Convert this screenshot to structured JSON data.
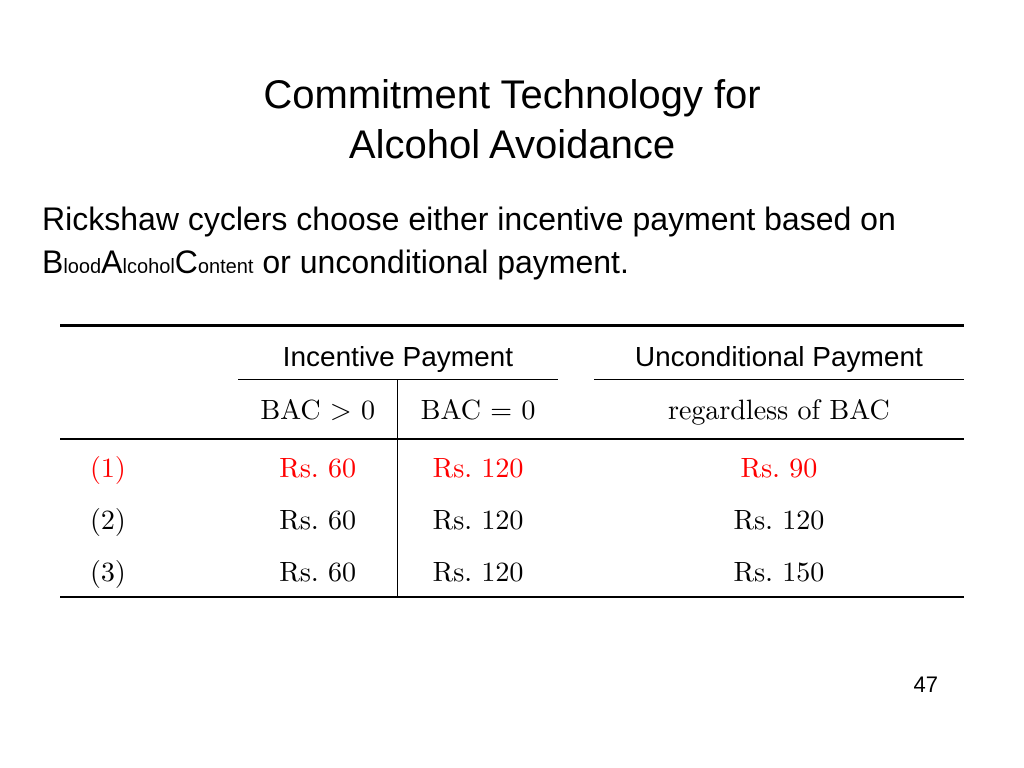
{
  "title_line1": "Commitment Technology for",
  "title_line2": "Alcohol Avoidance",
  "body_prefix": "Rickshaw cyclers choose either incentive payment based on ",
  "bac_B": "B",
  "bac_lood": "lood",
  "bac_A": "A",
  "bac_lcohol": "lcohol",
  "bac_C": "C",
  "bac_ontent": "ontent",
  "body_suffix": " or unconditional payment.",
  "table": {
    "group_headers": {
      "incentive": "Incentive Payment",
      "unconditional": "Unconditional Payment"
    },
    "sub_headers": {
      "bac_gt0": "BAC > 0",
      "bac_eq0": "BAC = 0",
      "regardless": "regardless of BAC"
    },
    "rows": [
      {
        "idx": "(1)",
        "bac_gt0": "Rs. 60",
        "bac_eq0": "Rs. 120",
        "uncond": "Rs. 90",
        "highlight": true
      },
      {
        "idx": "(2)",
        "bac_gt0": "Rs. 60",
        "bac_eq0": "Rs. 120",
        "uncond": "Rs. 120",
        "highlight": false
      },
      {
        "idx": "(3)",
        "bac_gt0": "Rs. 60",
        "bac_eq0": "Rs. 120",
        "uncond": "Rs. 150",
        "highlight": false
      }
    ],
    "colors": {
      "highlight": "#ff0000",
      "normal": "#000000",
      "rule": "#000000",
      "background": "#ffffff"
    },
    "fontsizes": {
      "title": 40,
      "body": 32,
      "header": 28,
      "cell": 28,
      "pagenum": 22
    }
  },
  "page_number": "47"
}
